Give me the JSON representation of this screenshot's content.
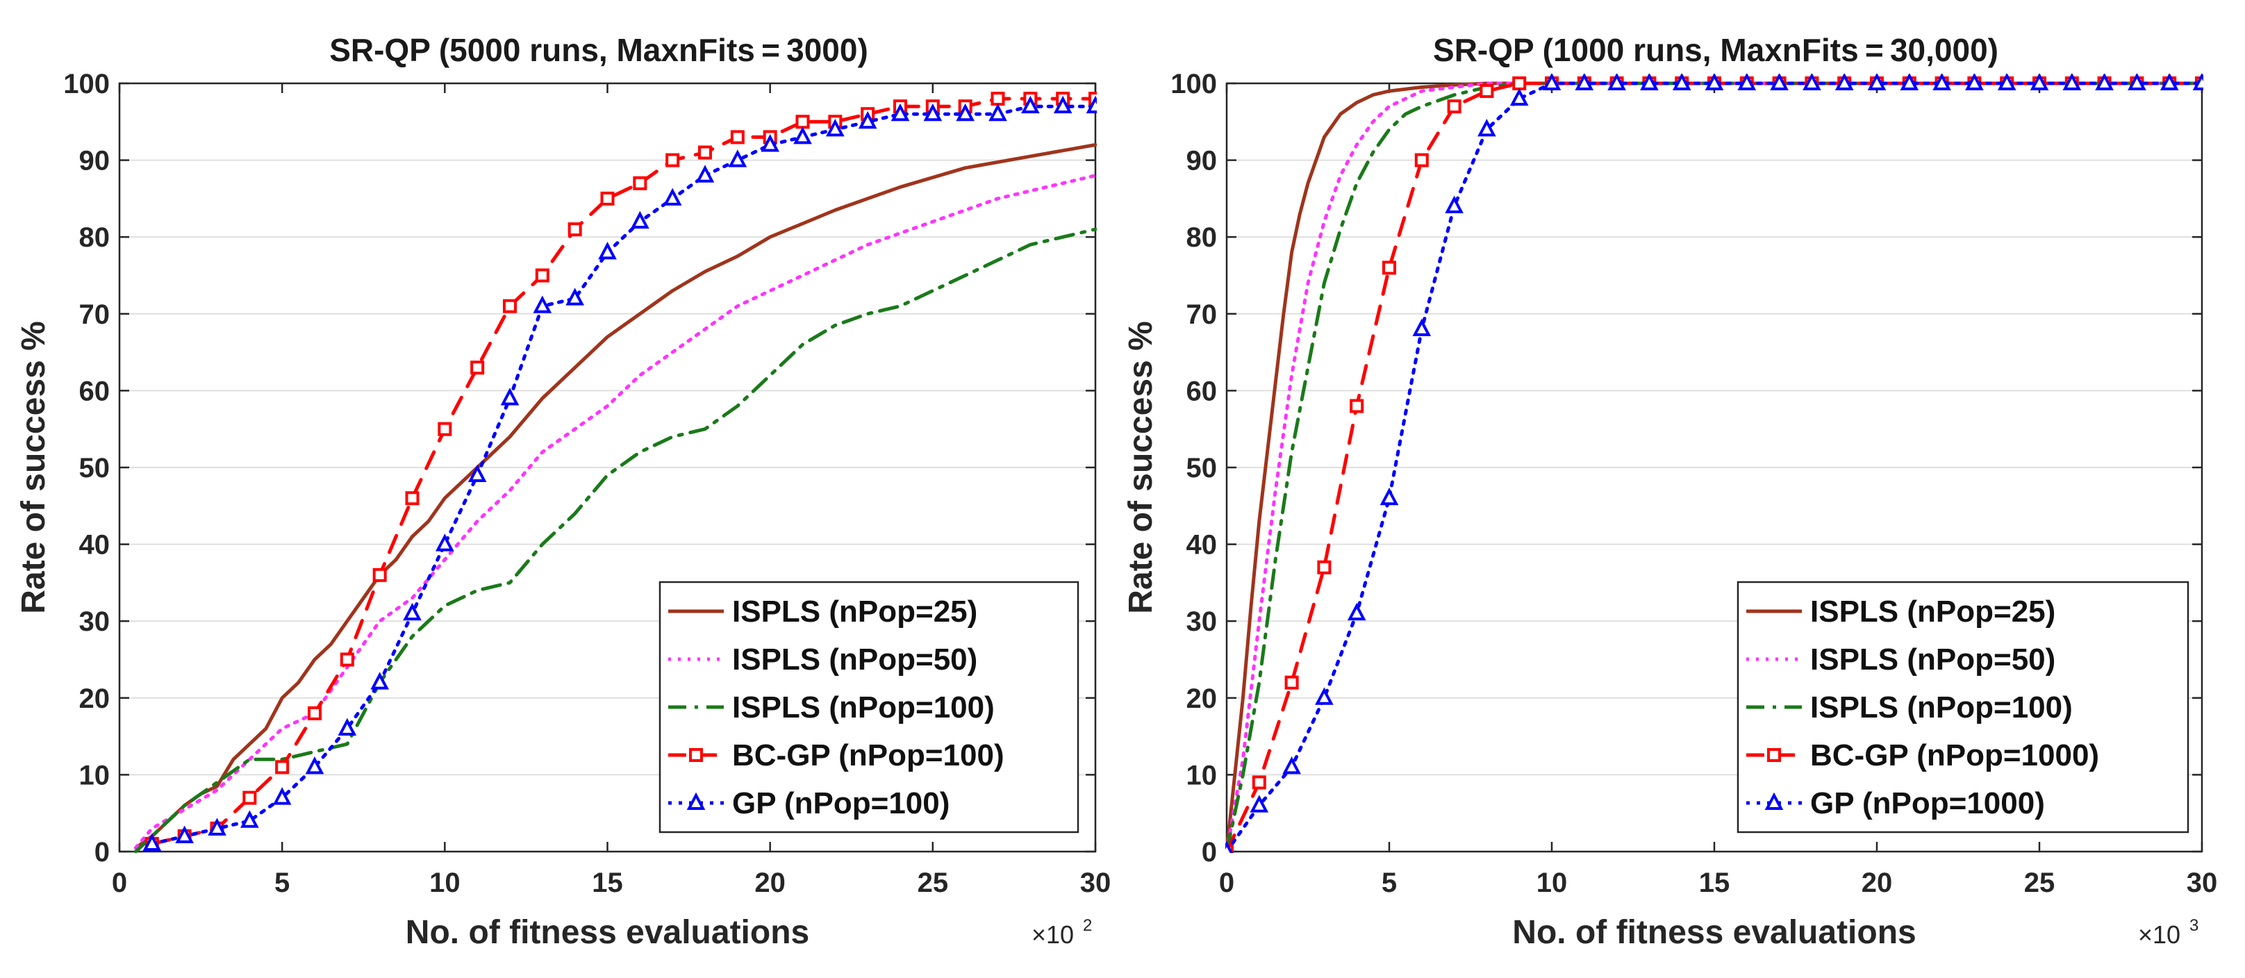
{
  "chart_data": [
    {
      "type": "line",
      "title": "SR-QP (5000 runs, MaxnFits = 3000)",
      "xlabel": "No. of fitness evaluations",
      "ylabel": "Rate of success %",
      "x_multiplier_base": "×10",
      "x_multiplier_exp": "2",
      "xlim": [
        0,
        30
      ],
      "ylim": [
        0,
        100
      ],
      "xticks": [
        0,
        5,
        10,
        15,
        20,
        25,
        30
      ],
      "yticks": [
        0,
        10,
        20,
        30,
        40,
        50,
        60,
        70,
        80,
        90,
        100
      ],
      "grid": true,
      "legend_position": "bottom-right",
      "series": [
        {
          "name": "ISPLS (nPop=25)",
          "color": "#a0341c",
          "dash": "solid",
          "marker": "none",
          "x": [
            0.5,
            1,
            1.5,
            2,
            2.5,
            3,
            3.5,
            4,
            4.5,
            5,
            5.5,
            6,
            6.5,
            7,
            7.5,
            8,
            8.5,
            9,
            9.5,
            10,
            11,
            12,
            13,
            14,
            15,
            16,
            17,
            18,
            19,
            20,
            22,
            24,
            26,
            28,
            30
          ],
          "y": [
            0.5,
            2,
            4,
            6,
            7.5,
            8.5,
            12,
            14,
            16,
            20,
            22,
            25,
            27,
            30,
            33,
            36,
            38,
            41,
            43,
            46,
            50,
            54,
            59,
            63,
            67,
            70,
            73,
            75.5,
            77.5,
            80,
            83.5,
            86.5,
            89,
            90.5,
            92
          ]
        },
        {
          "name": "ISPLS (nPop=50)",
          "color": "#ff33ff",
          "dash": "dot",
          "marker": "none",
          "x": [
            0.5,
            1,
            2,
            3,
            4,
            5,
            6,
            7,
            8,
            9,
            10,
            11,
            12,
            13,
            14,
            15,
            16,
            17,
            18,
            19,
            20,
            21,
            22,
            23,
            24,
            25,
            26,
            27,
            28,
            29,
            30
          ],
          "y": [
            0.5,
            3,
            5.5,
            8,
            12,
            16,
            18,
            24,
            30,
            33,
            38,
            43,
            47,
            52,
            55,
            58,
            62,
            65,
            68,
            71,
            73,
            75,
            77,
            79,
            80.5,
            82,
            83.5,
            85,
            86,
            87,
            88
          ]
        },
        {
          "name": "ISPLS (nPop=100)",
          "color": "#1a7a1a",
          "dash": "dashdot",
          "marker": "none",
          "x": [
            0.5,
            1,
            2,
            3,
            3.5,
            4,
            5,
            6,
            7,
            7.5,
            8,
            8.5,
            9,
            9.5,
            10,
            11,
            12,
            13,
            14,
            15,
            16,
            17,
            18,
            19,
            20,
            21,
            22,
            23,
            24,
            25,
            26,
            27,
            28,
            29,
            30
          ],
          "y": [
            0,
            2,
            6,
            9,
            10.5,
            12,
            12,
            13,
            14,
            18,
            22,
            25,
            28,
            30,
            32,
            34,
            35,
            40,
            44,
            49,
            52,
            54,
            55,
            58,
            62,
            66,
            68.5,
            70,
            71,
            73,
            75,
            77,
            79,
            80,
            81
          ]
        },
        {
          "name": "BC-GP (nPop=100)",
          "color": "#ff0000",
          "dash": "dash",
          "marker": "square",
          "x": [
            1,
            2,
            3,
            4,
            5,
            6,
            7,
            8,
            9,
            10,
            11,
            12,
            13,
            14,
            15,
            16,
            17,
            18,
            19,
            20,
            21,
            22,
            23,
            24,
            25,
            26,
            27,
            28,
            29,
            30
          ],
          "y": [
            1,
            2,
            3,
            7,
            11,
            18,
            25,
            36,
            46,
            55,
            63,
            71,
            75,
            81,
            85,
            87,
            90,
            91,
            93,
            93,
            95,
            95,
            96,
            97,
            97,
            97,
            98,
            98,
            98,
            98
          ]
        },
        {
          "name": "GP (nPop=100)",
          "color": "#0000ff",
          "dash": "dotted",
          "marker": "triangle",
          "x": [
            1,
            2,
            3,
            4,
            5,
            6,
            7,
            8,
            9,
            10,
            11,
            12,
            13,
            14,
            15,
            16,
            17,
            18,
            19,
            20,
            21,
            22,
            23,
            24,
            25,
            26,
            27,
            28,
            29,
            30
          ],
          "y": [
            1,
            2,
            3,
            4,
            7,
            11,
            16,
            22,
            31,
            40,
            49,
            59,
            71,
            72,
            78,
            82,
            85,
            88,
            90,
            92,
            93,
            94,
            95,
            96,
            96,
            96,
            96,
            97,
            97,
            97
          ]
        }
      ]
    },
    {
      "type": "line",
      "title": "SR-QP (1000 runs, MaxnFits = 30,000)",
      "xlabel": "No. of fitness evaluations",
      "ylabel": "Rate of success %",
      "x_multiplier_base": "×10",
      "x_multiplier_exp": "3",
      "xlim": [
        0,
        30
      ],
      "ylim": [
        0,
        100
      ],
      "xticks": [
        0,
        5,
        10,
        15,
        20,
        25,
        30
      ],
      "yticks": [
        0,
        10,
        20,
        30,
        40,
        50,
        60,
        70,
        80,
        90,
        100
      ],
      "grid": true,
      "legend_position": "bottom-right",
      "series": [
        {
          "name": "ISPLS (nPop=25)",
          "color": "#a0341c",
          "dash": "solid",
          "marker": "none",
          "x": [
            0,
            0.25,
            0.5,
            0.75,
            1,
            1.25,
            1.5,
            1.75,
            2,
            2.25,
            2.5,
            2.75,
            3,
            3.5,
            4,
            4.5,
            5,
            6,
            7,
            8,
            9,
            10,
            30
          ],
          "y": [
            0,
            10,
            20,
            32,
            43,
            52,
            61,
            70,
            78,
            83,
            87,
            90,
            93,
            96,
            97.5,
            98.5,
            99,
            99.5,
            99.8,
            100,
            100,
            100,
            100
          ]
        },
        {
          "name": "ISPLS (nPop=50)",
          "color": "#ff33ff",
          "dash": "dot",
          "marker": "none",
          "x": [
            0,
            0.5,
            1,
            1.5,
            2,
            2.5,
            3,
            3.5,
            4,
            4.5,
            5,
            5.5,
            6,
            7,
            8,
            9,
            10,
            30
          ],
          "y": [
            0,
            12,
            30,
            47,
            62,
            74,
            82,
            88,
            92,
            95,
            97,
            98,
            99,
            99.5,
            100,
            100,
            100,
            100
          ]
        },
        {
          "name": "ISPLS (nPop=100)",
          "color": "#1a7a1a",
          "dash": "dashdot",
          "marker": "none",
          "x": [
            0,
            0.5,
            1,
            1.5,
            2,
            2.5,
            3,
            3.5,
            4,
            4.5,
            5,
            5.5,
            6,
            7,
            8,
            9,
            10,
            30
          ],
          "y": [
            0,
            10,
            22,
            38,
            52,
            63,
            74,
            81,
            87,
            91,
            94,
            96,
            97,
            98.5,
            99.5,
            100,
            100,
            100
          ]
        },
        {
          "name": "BC-GP (nPop=1000)",
          "color": "#ff0000",
          "dash": "dash",
          "marker": "square",
          "x": [
            0,
            1,
            2,
            3,
            4,
            5,
            6,
            7,
            8,
            9,
            10,
            11,
            12,
            13,
            14,
            15,
            16,
            17,
            18,
            19,
            20,
            21,
            22,
            23,
            24,
            25,
            26,
            27,
            28,
            29,
            30
          ],
          "y": [
            0,
            9,
            22,
            37,
            58,
            76,
            90,
            97,
            99,
            100,
            100,
            100,
            100,
            100,
            100,
            100,
            100,
            100,
            100,
            100,
            100,
            100,
            100,
            100,
            100,
            100,
            100,
            100,
            100,
            100,
            100
          ]
        },
        {
          "name": "GP (nPop=1000)",
          "color": "#0000ff",
          "dash": "dotted",
          "marker": "triangle",
          "x": [
            0,
            1,
            2,
            3,
            4,
            5,
            6,
            7,
            8,
            9,
            10,
            11,
            12,
            13,
            14,
            15,
            16,
            17,
            18,
            19,
            20,
            21,
            22,
            23,
            24,
            25,
            26,
            27,
            28,
            29,
            30
          ],
          "y": [
            0,
            6,
            11,
            20,
            31,
            46,
            68,
            84,
            94,
            98,
            100,
            100,
            100,
            100,
            100,
            100,
            100,
            100,
            100,
            100,
            100,
            100,
            100,
            100,
            100,
            100,
            100,
            100,
            100,
            100,
            100
          ]
        }
      ]
    }
  ]
}
